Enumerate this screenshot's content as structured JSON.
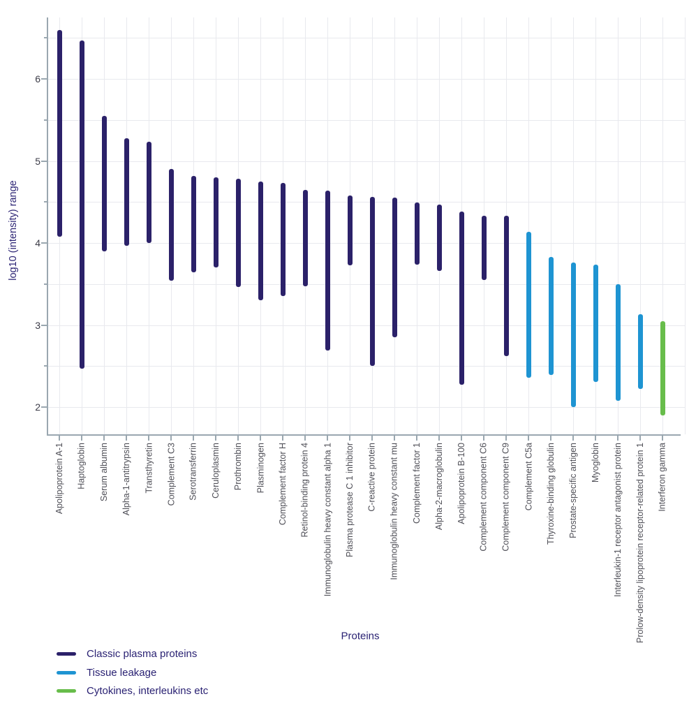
{
  "chart_data": {
    "type": "bar",
    "subtype": "vertical-range-bars",
    "title": "",
    "xlabel": "Proteins",
    "ylabel": "log10 (intensity) range",
    "ylim": [
      1.67,
      6.75
    ],
    "yticks": [
      2,
      3,
      4,
      5,
      6
    ],
    "yticks_minor": [
      2.5,
      3.5,
      4.5,
      5.5,
      6.5
    ],
    "grid": "horizontal lines every 0.5 units and one vertical line per category, very light gray",
    "legend_position": "bottom-left",
    "groups": [
      {
        "id": "classic",
        "label": "Classic plasma proteins",
        "color": "#2b2169"
      },
      {
        "id": "tissue",
        "label": "Tissue leakage",
        "color": "#1e94d2"
      },
      {
        "id": "cytokine",
        "label": "Cytokines, interleukins etc",
        "color": "#68bd4b"
      }
    ],
    "bars": [
      {
        "protein": "Apolipoprotein A-1",
        "low": 4.08,
        "high": 6.6,
        "group": "classic"
      },
      {
        "protein": "Haptoglobin",
        "low": 2.47,
        "high": 6.47,
        "group": "classic"
      },
      {
        "protein": "Serum albumin",
        "low": 3.9,
        "high": 5.55,
        "group": "classic"
      },
      {
        "protein": "Alpha-1-antitrypsin",
        "low": 3.97,
        "high": 5.28,
        "group": "classic"
      },
      {
        "protein": "Transthyretin",
        "low": 4.0,
        "high": 5.23,
        "group": "classic"
      },
      {
        "protein": "Complement C3",
        "low": 3.54,
        "high": 4.9,
        "group": "classic"
      },
      {
        "protein": "Serotransferrin",
        "low": 3.64,
        "high": 4.82,
        "group": "classic"
      },
      {
        "protein": "Ceruloplasmin",
        "low": 3.7,
        "high": 4.8,
        "group": "classic"
      },
      {
        "protein": "Prothrombin",
        "low": 3.46,
        "high": 4.78,
        "group": "classic"
      },
      {
        "protein": "Plasminogen",
        "low": 3.3,
        "high": 4.75,
        "group": "classic"
      },
      {
        "protein": "Complement factor H",
        "low": 3.35,
        "high": 4.73,
        "group": "classic"
      },
      {
        "protein": "Retinol-binding protein 4",
        "low": 3.47,
        "high": 4.65,
        "group": "classic"
      },
      {
        "protein": "Immunoglobulin heavy constant alpha 1",
        "low": 2.69,
        "high": 4.64,
        "group": "classic"
      },
      {
        "protein": "Plasma protease C 1 inhibitor",
        "low": 3.73,
        "high": 4.58,
        "group": "classic"
      },
      {
        "protein": "C-reactive protein",
        "low": 2.5,
        "high": 4.56,
        "group": "classic"
      },
      {
        "protein": "Immunoglobulin heavy constant mu",
        "low": 2.85,
        "high": 4.55,
        "group": "classic"
      },
      {
        "protein": "Complement factor 1",
        "low": 3.74,
        "high": 4.49,
        "group": "classic"
      },
      {
        "protein": "Alpha-2-macroglobulin",
        "low": 3.66,
        "high": 4.47,
        "group": "classic"
      },
      {
        "protein": "Apolipoprotein B-100",
        "low": 2.27,
        "high": 4.38,
        "group": "classic"
      },
      {
        "protein": "Complement component C6",
        "low": 3.55,
        "high": 4.33,
        "group": "classic"
      },
      {
        "protein": "Complement component C9",
        "low": 2.62,
        "high": 4.33,
        "group": "classic"
      },
      {
        "protein": "Complement C5a",
        "low": 2.36,
        "high": 4.14,
        "group": "tissue"
      },
      {
        "protein": "Thyroxine-binding globulin",
        "low": 2.39,
        "high": 3.83,
        "group": "tissue"
      },
      {
        "protein": "Prostate-specific antigen",
        "low": 2.0,
        "high": 3.76,
        "group": "tissue"
      },
      {
        "protein": "Myoglobin",
        "low": 2.31,
        "high": 3.74,
        "group": "tissue"
      },
      {
        "protein": "Interleukin-1 receptor antagonist protein",
        "low": 2.08,
        "high": 3.5,
        "group": "tissue"
      },
      {
        "protein": "Prolow-density lipoprotein receptor-related protein 1",
        "low": 2.22,
        "high": 3.13,
        "group": "tissue"
      },
      {
        "protein": "Interferon gamma",
        "low": 1.9,
        "high": 3.05,
        "group": "cytokine"
      }
    ]
  }
}
